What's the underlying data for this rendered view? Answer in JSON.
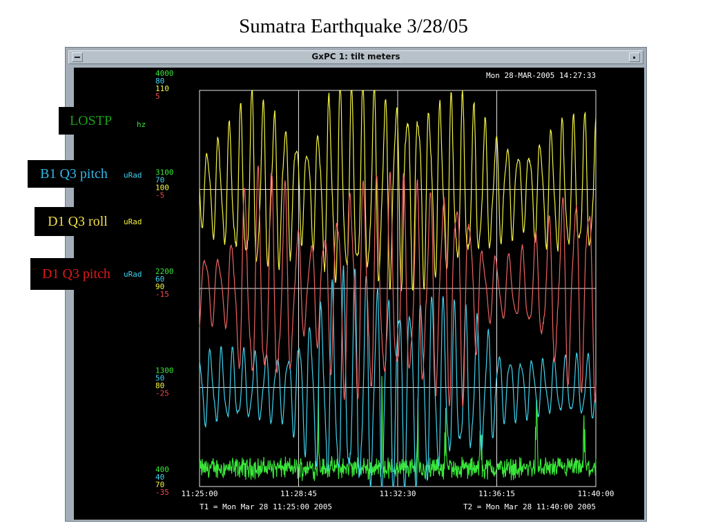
{
  "page": {
    "title": "Sumatra Earthquake 3/28/05"
  },
  "window": {
    "title": "GxPC 1: tilt meters"
  },
  "timestamp": "Mon 28-MAR-2005 14:27:33",
  "tags": [
    {
      "text": "LOSTP",
      "color": "#1a9e1a"
    },
    {
      "text": "B1 Q3 pitch",
      "color": "#34b6e8"
    },
    {
      "text": "D1 Q3 roll",
      "color": "#f2e04a"
    },
    {
      "text": "D1 Q3 pitch",
      "color": "#e01818"
    }
  ],
  "chart_data": {
    "type": "line",
    "title": "",
    "x_ticks": [
      "11:25:00",
      "11:28:45",
      "11:32:30",
      "11:36:15",
      "11:40:00"
    ],
    "t1_label": "T1 = Mon Mar 28 11:25:00 2005",
    "t2_label": "T2 = Mon Mar 28 11:40:00 2005",
    "axis_colors": [
      "#39e639",
      "#40d4f0",
      "#f5f542",
      "#f04848"
    ],
    "y_axes": [
      {
        "ticks": [
          "4000",
          "80",
          "110",
          "5"
        ]
      },
      {
        "ticks": [
          "3100",
          "70",
          "100",
          "-5"
        ],
        "unit": "uRad"
      },
      {
        "ticks": [
          "2200",
          "60",
          "90",
          "-15"
        ],
        "unit": "uRad"
      },
      {
        "ticks": [
          "1300",
          "50",
          "80",
          "-25"
        ]
      },
      {
        "ticks": [
          "400",
          "40",
          "70",
          "-35"
        ]
      }
    ],
    "units": {
      "lostp": "hz",
      "b1_q3_pitch": "uRad",
      "d1_q3_roll": "uRad"
    },
    "series": [
      {
        "key": "lostp",
        "color": "#39e639",
        "ymin": 400,
        "ymax": 4000,
        "baseline": 450,
        "noise": 130,
        "spikes": [
          [
            0.3,
            750
          ],
          [
            0.46,
            1050
          ],
          [
            0.55,
            850
          ],
          [
            0.62,
            900
          ],
          [
            0.71,
            880
          ],
          [
            0.85,
            850
          ],
          [
            0.97,
            900
          ]
        ]
      },
      {
        "key": "b1_q3_pitch",
        "color": "#40d4f0",
        "ymin": 40,
        "ymax": 80,
        "baseline": 50,
        "period_min": 0.42,
        "envelope": [
          [
            0.0,
            3.5
          ],
          [
            0.22,
            3.0
          ],
          [
            0.27,
            6
          ],
          [
            0.35,
            9.5
          ],
          [
            0.4,
            10
          ],
          [
            0.5,
            9
          ],
          [
            0.58,
            8.5
          ],
          [
            0.65,
            7
          ],
          [
            0.72,
            6
          ],
          [
            0.76,
            3
          ],
          [
            0.88,
            2.5
          ],
          [
            1.0,
            3
          ]
        ]
      },
      {
        "key": "d1_q3_roll",
        "color": "#f5f542",
        "ymin": 70,
        "ymax": 110,
        "baseline": 100,
        "period_min": 0.42,
        "envelope": [
          [
            0.0,
            3
          ],
          [
            0.08,
            6
          ],
          [
            0.13,
            8.5
          ],
          [
            0.2,
            7
          ],
          [
            0.27,
            4
          ],
          [
            0.31,
            6.5
          ],
          [
            0.33,
            9
          ],
          [
            0.42,
            9
          ],
          [
            0.5,
            8.5
          ],
          [
            0.6,
            8
          ],
          [
            0.67,
            8
          ],
          [
            0.75,
            5
          ],
          [
            0.82,
            3.5
          ],
          [
            0.9,
            6
          ],
          [
            1.0,
            6.5
          ]
        ]
      },
      {
        "key": "d1_q3_pitch",
        "color": "#f06464",
        "ymin": -35,
        "ymax": 5,
        "baseline": -15,
        "period_min": 0.5,
        "envelope": [
          [
            0.0,
            3.5
          ],
          [
            0.05,
            3
          ],
          [
            0.08,
            4
          ],
          [
            0.1,
            8
          ],
          [
            0.15,
            10
          ],
          [
            0.22,
            9
          ],
          [
            0.26,
            4
          ],
          [
            0.3,
            5
          ],
          [
            0.38,
            10
          ],
          [
            0.45,
            9.5
          ],
          [
            0.58,
            9
          ],
          [
            0.66,
            10
          ],
          [
            0.72,
            3
          ],
          [
            0.8,
            3
          ],
          [
            0.86,
            5
          ],
          [
            0.92,
            8.5
          ],
          [
            1.0,
            9
          ]
        ]
      }
    ]
  }
}
